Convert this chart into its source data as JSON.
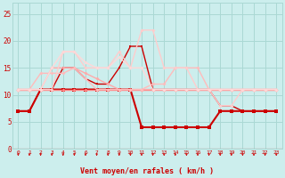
{
  "title": "",
  "xlabel": "Vent moyen/en rafales ( km/h )",
  "x": [
    0,
    1,
    2,
    3,
    4,
    5,
    6,
    7,
    8,
    9,
    10,
    11,
    12,
    13,
    14,
    15,
    16,
    17,
    18,
    19,
    20,
    21,
    22,
    23
  ],
  "series": [
    {
      "y": [
        7,
        7,
        11,
        11,
        11,
        11,
        11,
        11,
        11,
        11,
        11,
        4,
        4,
        4,
        4,
        4,
        4,
        4,
        7,
        7,
        7,
        7,
        7,
        7
      ],
      "color": "#cc0000",
      "lw": 1.5,
      "marker": "s",
      "ms": 2.5
    },
    {
      "y": [
        7,
        7,
        11,
        11,
        15,
        15,
        13,
        12,
        12,
        15,
        19,
        19,
        11,
        11,
        11,
        11,
        11,
        11,
        8,
        8,
        7,
        7,
        7,
        7
      ],
      "color": "#cc0000",
      "lw": 1.0,
      "marker": "s",
      "ms": 2.0
    },
    {
      "y": [
        11,
        11,
        11,
        11,
        11,
        11,
        11,
        11,
        11,
        11,
        11,
        11,
        11,
        11,
        11,
        11,
        11,
        11,
        11,
        11,
        11,
        11,
        11,
        11
      ],
      "color": "#ff8888",
      "lw": 1.0,
      "marker": "D",
      "ms": 2.0
    },
    {
      "y": [
        11,
        11,
        11,
        15,
        15,
        15,
        14,
        13,
        12,
        11,
        11,
        11,
        11,
        11,
        11,
        11,
        11,
        11,
        11,
        11,
        11,
        11,
        11,
        11
      ],
      "color": "#ffaaaa",
      "lw": 1.0,
      "marker": "D",
      "ms": 2.0
    },
    {
      "y": [
        11,
        11,
        14,
        14,
        14,
        15,
        13,
        11,
        11,
        11,
        11,
        11,
        12,
        12,
        15,
        15,
        15,
        11,
        11,
        11,
        11,
        11,
        11,
        11
      ],
      "color": "#ffbbbb",
      "lw": 1.0,
      "marker": "D",
      "ms": 2.0
    },
    {
      "y": [
        11,
        11,
        11,
        11,
        18,
        18,
        15,
        15,
        15,
        18,
        15,
        22,
        22,
        15,
        15,
        15,
        11,
        11,
        8,
        8,
        11,
        11,
        11,
        11
      ],
      "color": "#ffcccc",
      "lw": 1.0,
      "marker": "D",
      "ms": 2.0
    },
    {
      "y": [
        11,
        11,
        11,
        15,
        18,
        18,
        16,
        15,
        15,
        17,
        15,
        15,
        11,
        11,
        11,
        11,
        11,
        11,
        11,
        11,
        11,
        11,
        11,
        11
      ],
      "color": "#ffd8d8",
      "lw": 1.0,
      "marker": "D",
      "ms": 2.0
    }
  ],
  "ylim": [
    0,
    27
  ],
  "yticks": [
    0,
    5,
    10,
    15,
    20,
    25
  ],
  "xlim": [
    -0.5,
    23.5
  ],
  "bg_color": "#cceeed",
  "grid_color": "#aad8d4",
  "tick_color": "#cc0000",
  "label_color": "#cc0000"
}
